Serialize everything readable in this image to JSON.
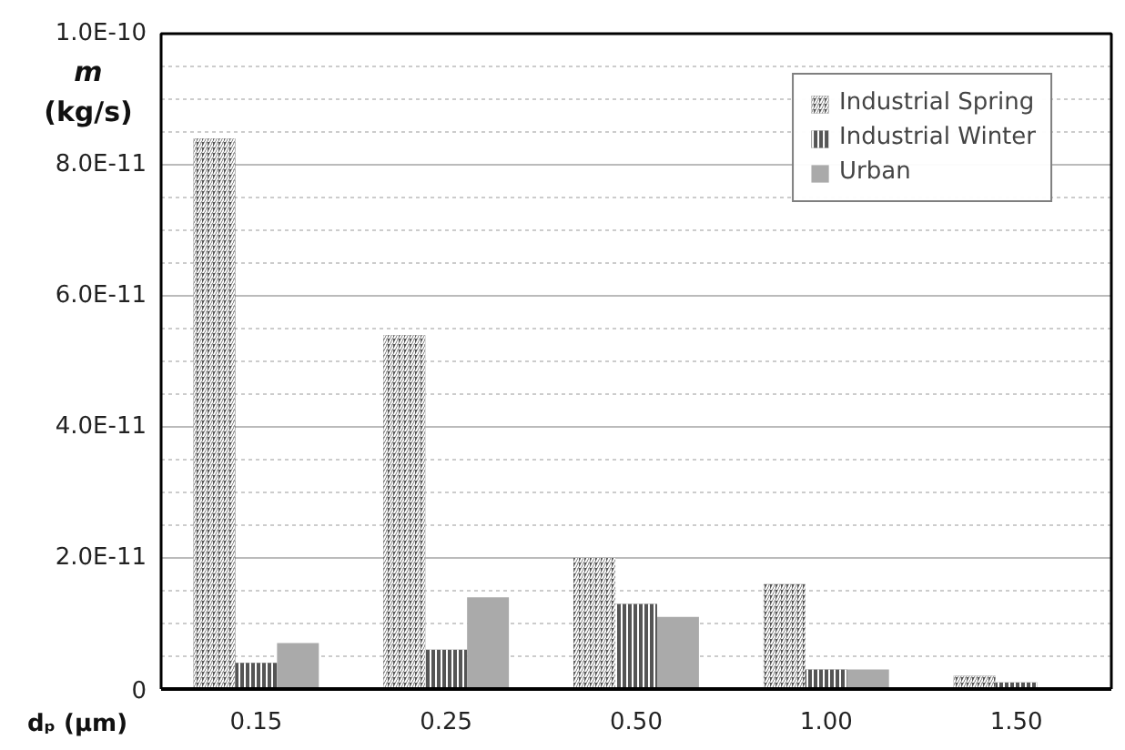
{
  "chart_data": {
    "type": "bar",
    "xlabel": "dₚ (µm)",
    "ylabel": "m (kg/s)",
    "categories": [
      "0.15",
      "0.25",
      "0.50",
      "1.00",
      "1.50"
    ],
    "series": [
      {
        "name": "Industrial Spring",
        "color": "#555555",
        "values": [
          8.4e-11,
          5.4e-11,
          2e-11,
          1.6e-11,
          2e-12
        ]
      },
      {
        "name": "Industrial Winter",
        "color": "#555555",
        "values": [
          4e-12,
          6e-12,
          1.3e-11,
          3e-12,
          1e-12
        ]
      },
      {
        "name": "Urban",
        "color": "#aaaaaa",
        "values": [
          7e-12,
          1.4e-11,
          1.1e-11,
          3e-12,
          0
        ]
      }
    ],
    "ylim": [
      0,
      1e-10
    ],
    "yticks": [
      {
        "value": 0,
        "label": "0"
      },
      {
        "value": 2e-11,
        "label": "2.0E-11"
      },
      {
        "value": 4e-11,
        "label": "4.0E-11"
      },
      {
        "value": 6e-11,
        "label": "6.0E-11"
      },
      {
        "value": 8e-11,
        "label": "8.0E-11"
      },
      {
        "value": 1e-10,
        "label": "1.0E-10"
      }
    ],
    "grid": "y",
    "legend": "top right"
  }
}
